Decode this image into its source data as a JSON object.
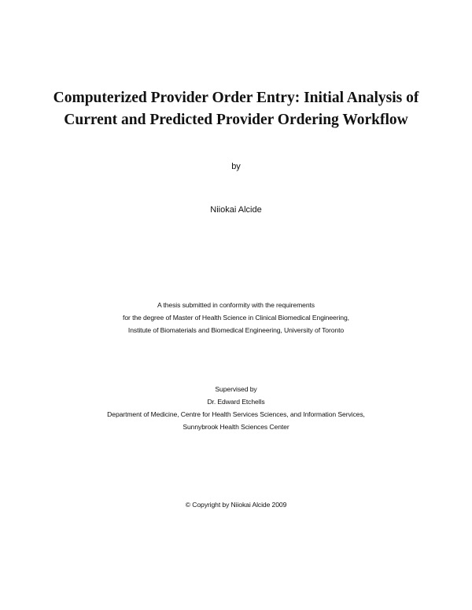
{
  "title": {
    "line1": "Computerized Provider Order Entry: Initial Analysis of",
    "line2": "Current and Predicted Provider Ordering Workflow"
  },
  "by": "by",
  "author": "Niiokai Alcide",
  "submission": [
    "A thesis submitted in conformity with the requirements",
    "for the degree of Master of Health Science in Clinical Biomedical Engineering,",
    "Institute of Biomaterials and Biomedical Engineering, University of Toronto"
  ],
  "supervision": [
    "Supervised by",
    "Dr. Edward Etchells",
    "Department of Medicine, Centre for Health Services Sciences, and Information Services,",
    "Sunnybrook Health Sciences Center"
  ],
  "copyright": "© Copyright by Niiokai Alcide 2009"
}
